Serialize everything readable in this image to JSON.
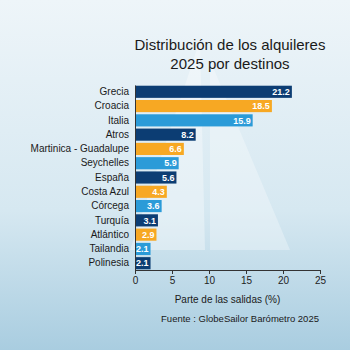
{
  "chart_data": {
    "type": "bar",
    "orientation": "horizontal",
    "title": "Distribución de los alquileres 2025 por destinos",
    "x_label": "Parte de las salidas (%)",
    "source": "Fuente : GlobeSailor Barómetro 2025",
    "categories": [
      "Grecia",
      "Croacia",
      "Italia",
      "Atros",
      "Martinica - Guadalupe",
      "Seychelles",
      "España",
      "Costa Azul",
      "Córcega",
      "Turquía",
      "Atlántico",
      "Tailandia",
      "Polinesia"
    ],
    "values": [
      21.2,
      18.5,
      15.9,
      8.2,
      6.6,
      5.9,
      5.6,
      4.3,
      3.6,
      3.1,
      2.9,
      2.1,
      2.1
    ],
    "colors": [
      "#0c3d73",
      "#f7a823",
      "#2b9bd8",
      "#0c3d73",
      "#f7a823",
      "#2b9bd8",
      "#0c3d73",
      "#f7a823",
      "#2b9bd8",
      "#0c3d73",
      "#f7a823",
      "#2b9bd8",
      "#0c3d73"
    ],
    "xlim": [
      0,
      25
    ],
    "xticks": [
      0,
      5,
      10,
      15,
      20,
      25
    ],
    "grid": false,
    "data_labels": true
  }
}
